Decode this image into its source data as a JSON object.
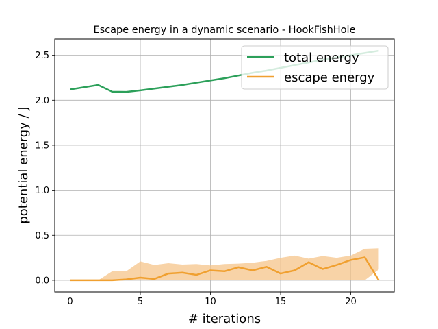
{
  "chart_data": {
    "type": "line",
    "title": "Escape energy in a dynamic scenario - HookFishHole",
    "xlabel": "# iterations",
    "ylabel": "potential energy / J",
    "xlim": [
      -1.1,
      23.1
    ],
    "ylim": [
      -0.13,
      2.68
    ],
    "xticks": [
      0,
      5,
      10,
      15,
      20
    ],
    "yticks": [
      0.0,
      0.5,
      1.0,
      1.5,
      2.0,
      2.5
    ],
    "xtick_labels": [
      "0",
      "5",
      "10",
      "15",
      "20"
    ],
    "ytick_labels": [
      "0.0",
      "0.5",
      "1.0",
      "1.5",
      "2.0",
      "2.5"
    ],
    "grid": true,
    "legend_position": "top-right",
    "x": [
      0,
      1,
      2,
      3,
      4,
      5,
      6,
      7,
      8,
      9,
      10,
      11,
      12,
      13,
      14,
      15,
      16,
      17,
      18,
      19,
      20,
      21,
      22
    ],
    "series": [
      {
        "name": "total energy",
        "color": "#2ca05a",
        "values": [
          2.12,
          2.145,
          2.17,
          2.095,
          2.093,
          2.11,
          2.13,
          2.15,
          2.17,
          2.195,
          2.22,
          2.245,
          2.275,
          2.305,
          2.33,
          2.36,
          2.39,
          2.42,
          2.45,
          2.475,
          2.5,
          2.525,
          2.55
        ]
      },
      {
        "name": "escape energy",
        "color": "#f0a030",
        "values": [
          0.0,
          0.0,
          0.0,
          0.0,
          0.01,
          0.03,
          0.015,
          0.075,
          0.085,
          0.06,
          0.11,
          0.1,
          0.145,
          0.11,
          0.15,
          0.075,
          0.11,
          0.2,
          0.125,
          0.17,
          0.225,
          0.255,
          0.0
        ],
        "band_upper": [
          0.0,
          0.0,
          0.0,
          0.1,
          0.1,
          0.21,
          0.17,
          0.19,
          0.175,
          0.18,
          0.165,
          0.18,
          0.185,
          0.195,
          0.215,
          0.25,
          0.275,
          0.24,
          0.27,
          0.25,
          0.275,
          0.35,
          0.355
        ],
        "band_lower": [
          0.0,
          0.0,
          0.0,
          0.0,
          0.0,
          0.0,
          0.0,
          0.0,
          0.0,
          0.0,
          0.0,
          0.0,
          0.0,
          0.0,
          0.0,
          0.0,
          0.0,
          0.0,
          0.0,
          0.0,
          0.0,
          0.0,
          0.12
        ],
        "band_color": "#f5c48a"
      }
    ]
  }
}
